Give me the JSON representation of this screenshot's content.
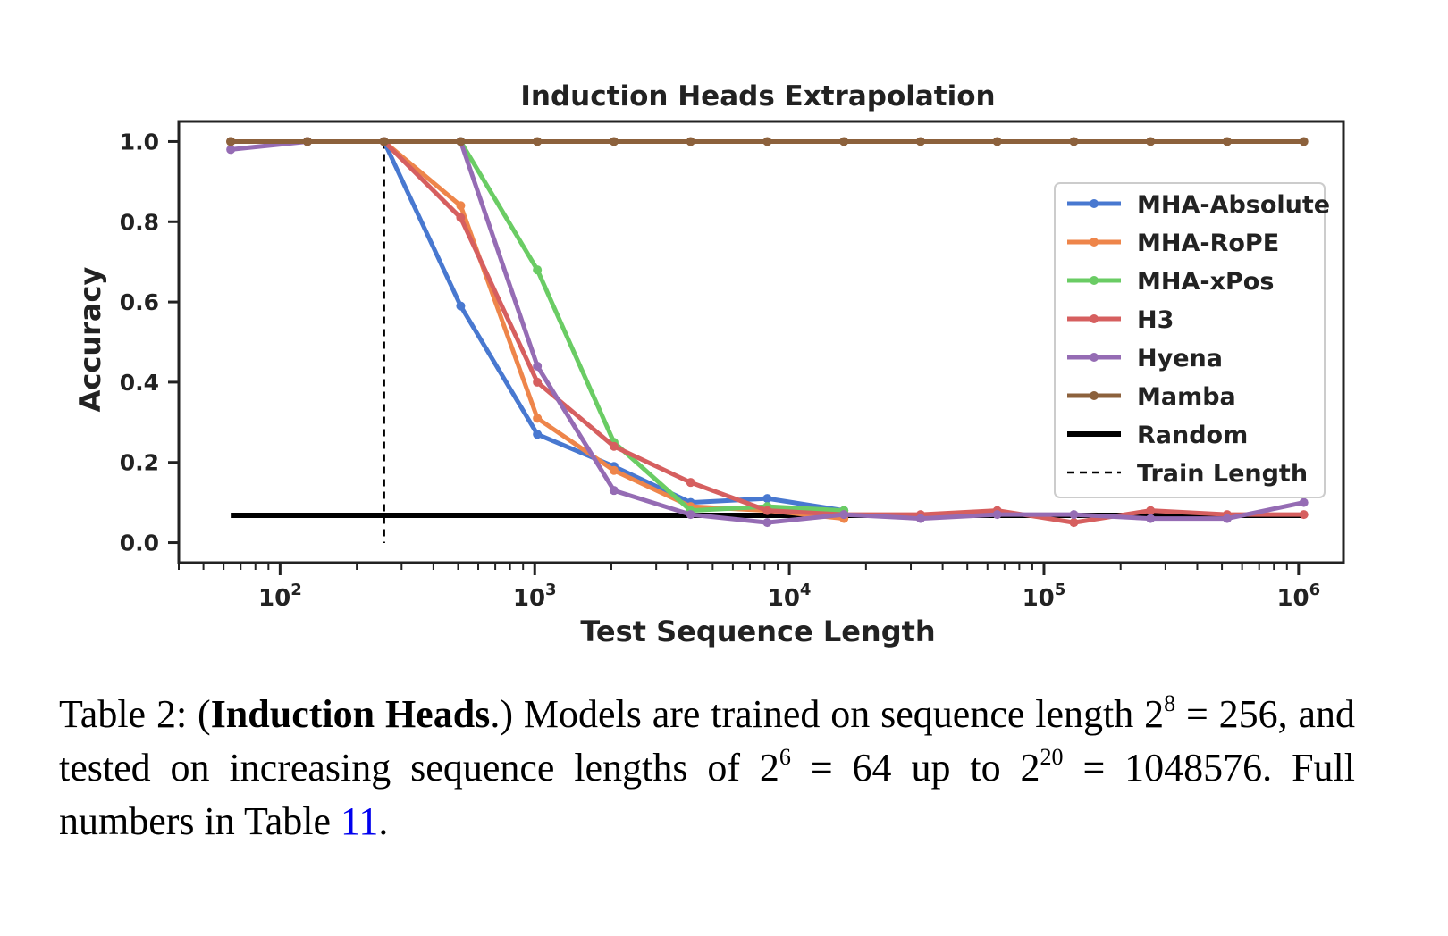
{
  "chart_data": {
    "type": "line",
    "title": "Induction Heads Extrapolation",
    "xlabel": "Test Sequence Length",
    "ylabel": "Accuracy",
    "xscale": "log2",
    "x": [
      64,
      128,
      256,
      512,
      1024,
      2048,
      4096,
      8192,
      16384,
      32768,
      65536,
      131072,
      262144,
      524288,
      1048576
    ],
    "xlim": [
      40,
      1500000
    ],
    "ylim": [
      -0.05,
      1.05
    ],
    "xtick_labels": [
      {
        "value": 100,
        "base": "10",
        "exp": "2"
      },
      {
        "value": 1000,
        "base": "10",
        "exp": "3"
      },
      {
        "value": 10000,
        "base": "10",
        "exp": "4"
      },
      {
        "value": 100000,
        "base": "10",
        "exp": "5"
      },
      {
        "value": 1000000,
        "base": "10",
        "exp": "6"
      }
    ],
    "yticks": [
      0.0,
      0.2,
      0.4,
      0.6,
      0.8,
      1.0
    ],
    "ytick_labels": [
      "0.0",
      "0.2",
      "0.4",
      "0.6",
      "0.8",
      "1.0"
    ],
    "legend_position": "right",
    "series": [
      {
        "name": "MHA-Absolute",
        "color": "#4878d0",
        "x": [
          64,
          128,
          256,
          512,
          1024,
          2048,
          4096,
          8192,
          16384
        ],
        "values": [
          1.0,
          1.0,
          1.0,
          0.59,
          0.27,
          0.19,
          0.1,
          0.11,
          0.08
        ]
      },
      {
        "name": "MHA-RoPE",
        "color": "#ee854a",
        "x": [
          64,
          128,
          256,
          512,
          1024,
          2048,
          4096,
          8192,
          16384
        ],
        "values": [
          1.0,
          1.0,
          1.0,
          0.84,
          0.31,
          0.18,
          0.09,
          0.08,
          0.06
        ]
      },
      {
        "name": "MHA-xPos",
        "color": "#6acc64",
        "x": [
          64,
          128,
          256,
          512,
          1024,
          2048,
          4096,
          8192,
          16384
        ],
        "values": [
          1.0,
          1.0,
          1.0,
          1.0,
          0.68,
          0.25,
          0.08,
          0.09,
          0.08
        ]
      },
      {
        "name": "H3",
        "color": "#d65f5f",
        "x": [
          64,
          128,
          256,
          512,
          1024,
          2048,
          4096,
          8192,
          16384,
          32768,
          65536,
          131072,
          262144,
          524288,
          1048576
        ],
        "values": [
          1.0,
          1.0,
          1.0,
          0.81,
          0.4,
          0.24,
          0.15,
          0.08,
          0.07,
          0.07,
          0.08,
          0.05,
          0.08,
          0.07,
          0.07
        ]
      },
      {
        "name": "Hyena",
        "color": "#956cb4",
        "x": [
          64,
          128,
          256,
          512,
          1024,
          2048,
          4096,
          8192,
          16384,
          32768,
          65536,
          131072,
          262144,
          524288,
          1048576
        ],
        "values": [
          0.98,
          1.0,
          1.0,
          1.0,
          0.44,
          0.13,
          0.07,
          0.05,
          0.07,
          0.06,
          0.07,
          0.07,
          0.06,
          0.06,
          0.1
        ]
      },
      {
        "name": "Mamba",
        "color": "#8c613c",
        "x": [
          64,
          128,
          256,
          512,
          1024,
          2048,
          4096,
          8192,
          16384,
          32768,
          65536,
          131072,
          262144,
          524288,
          1048576
        ],
        "values": [
          1.0,
          1.0,
          1.0,
          1.0,
          1.0,
          1.0,
          1.0,
          1.0,
          1.0,
          1.0,
          1.0,
          1.0,
          1.0,
          1.0,
          1.0
        ]
      }
    ],
    "random_baseline": {
      "name": "Random",
      "color": "#000000",
      "value": 0.068,
      "x_range": [
        64,
        1048576
      ]
    },
    "train_length": {
      "name": "Train Length",
      "color": "#000000",
      "x": 256
    }
  },
  "caption": {
    "label": "Table 2:",
    "open_paren": "(",
    "bold": "Induction Heads",
    "close": ".)",
    "t1": " Models are trained on sequence length ",
    "b1": "2",
    "e1": "8",
    "t2": " = 256, and tested on increasing sequence lengths of ",
    "b2": "2",
    "e2": "6",
    "t3": " = 64 up to ",
    "b3": "2",
    "e3": "20",
    "t4": " = 1048576. Full numbers in Table ",
    "ref": "11",
    "end": "."
  }
}
